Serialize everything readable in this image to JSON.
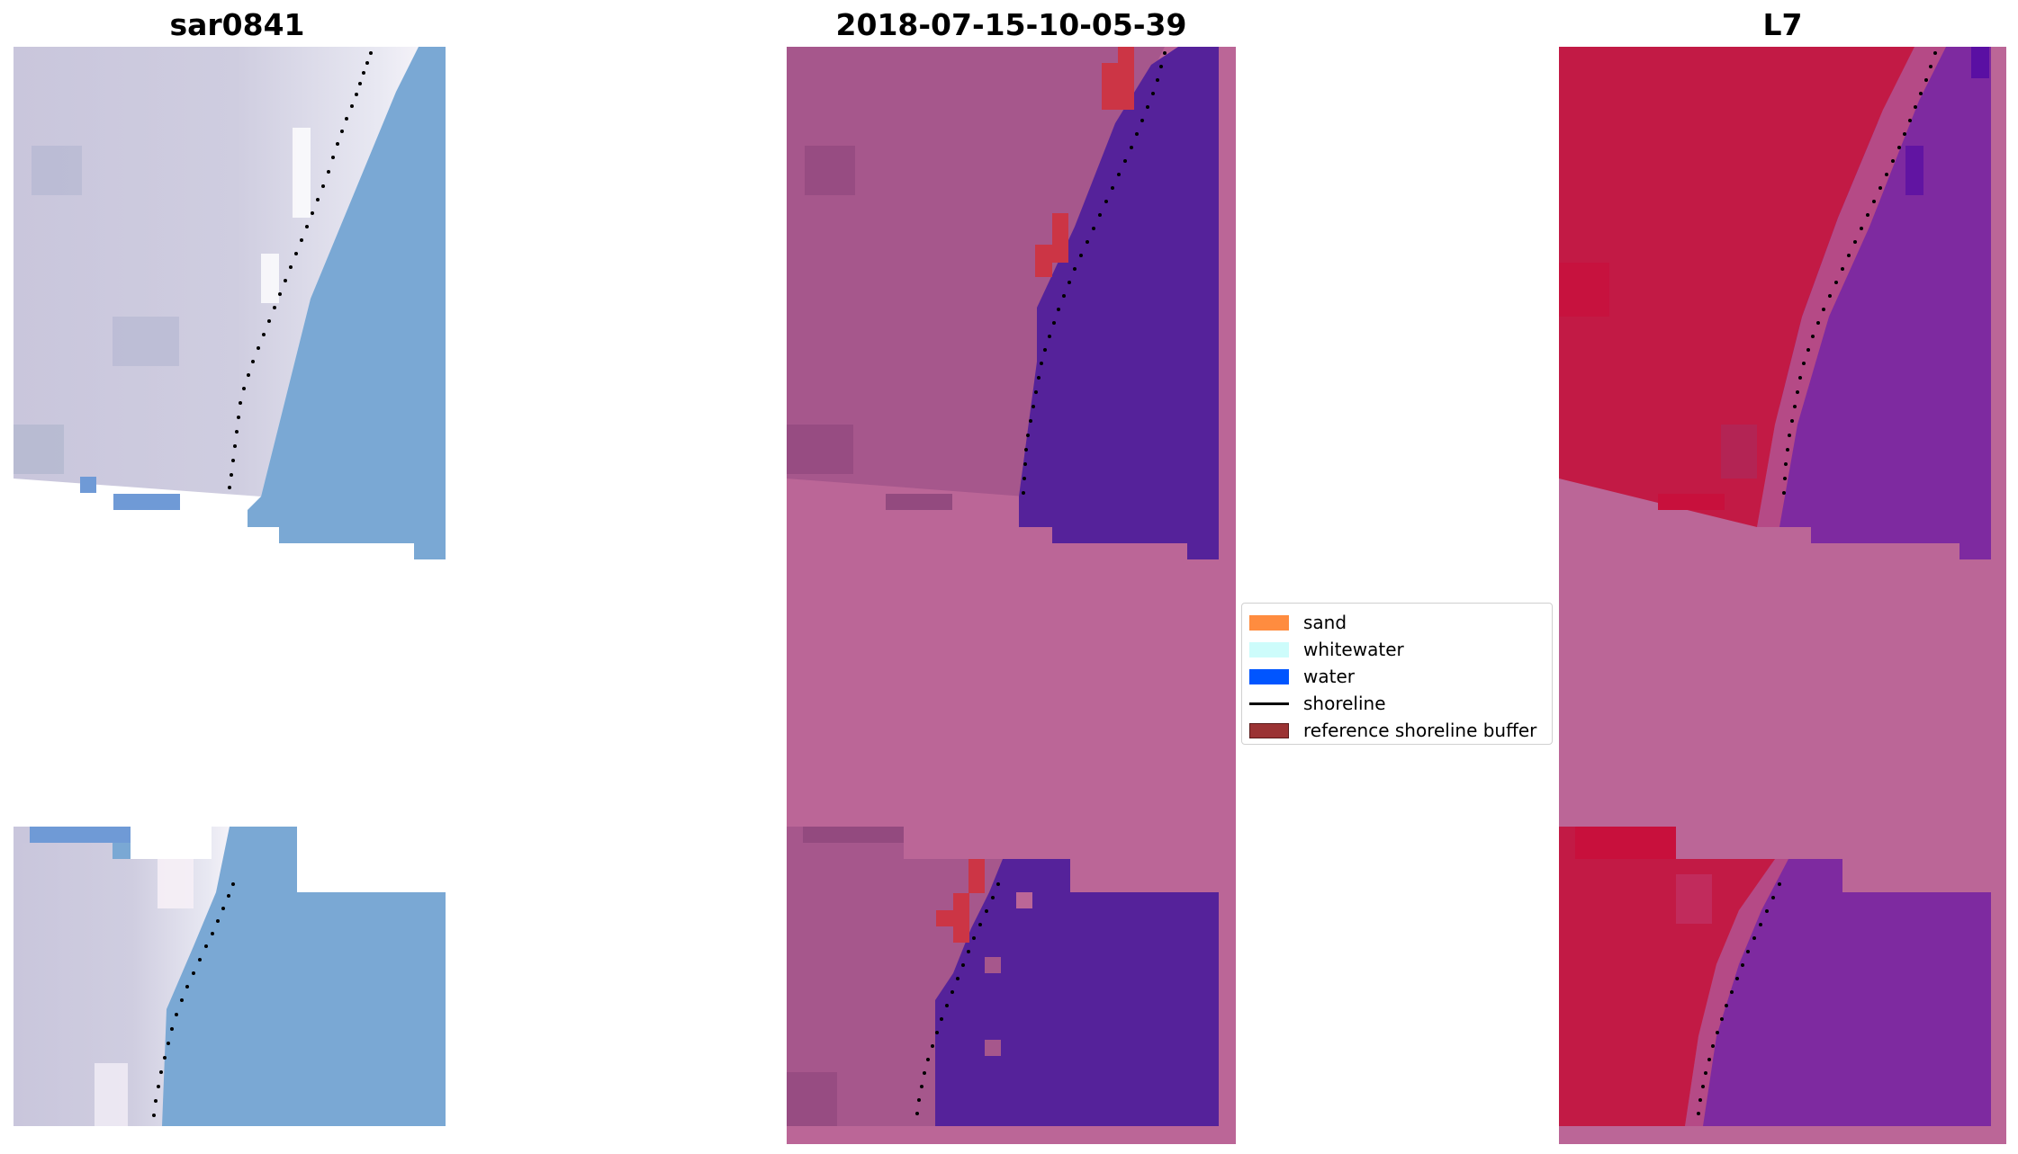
{
  "panels": [
    {
      "title": "sar0841"
    },
    {
      "title": "2018-07-15-10-05-39"
    },
    {
      "title": "L7"
    }
  ],
  "legend": {
    "items": [
      {
        "label": "sand",
        "color": "#ff8c3f",
        "kind": "patch",
        "icon": "sand-swatch"
      },
      {
        "label": "whitewater",
        "color": "#cdfcfb",
        "kind": "patch",
        "icon": "whitewater-swatch"
      },
      {
        "label": "water",
        "color": "#0055ff",
        "kind": "patch",
        "icon": "water-swatch"
      },
      {
        "label": "shoreline",
        "color": "#000000",
        "kind": "line",
        "icon": "shoreline-line"
      },
      {
        "label": "reference shoreline buffer",
        "color": "#9b3334",
        "kind": "patch",
        "icon": "buffer-swatch"
      }
    ]
  },
  "colors": {
    "sar_land": "#c8c8dc",
    "sar_water": "#7aa8d4",
    "classified_land": "#a6578c",
    "classified_water": "#55229a",
    "classified_nodata": "#bb6697",
    "buffer_red": "#cc3545",
    "ndwi_land": "#c21a45",
    "ndwi_water": "#7e2aa0",
    "ndwi_nodata": "#bb6697"
  }
}
